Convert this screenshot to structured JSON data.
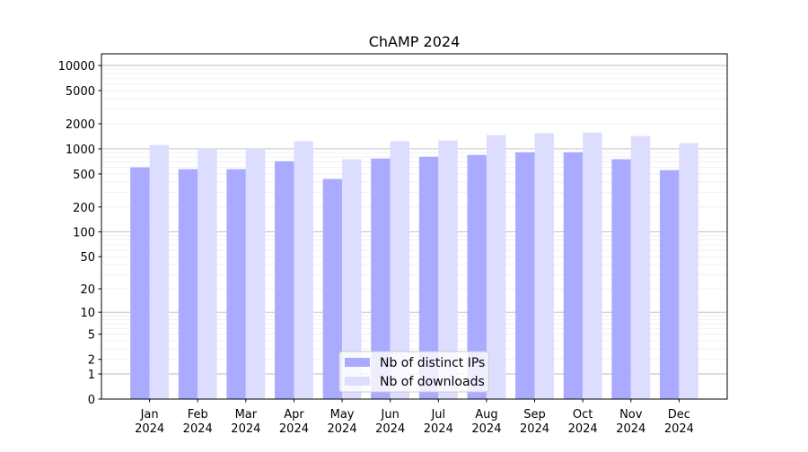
{
  "chart_data": {
    "type": "bar",
    "title": "ChAMP 2024",
    "xlabel": "",
    "ylabel": "",
    "yscale": "log(1+y)",
    "ylim": [
      0,
      13800
    ],
    "grid": true,
    "legend_position": "bottom-center",
    "categories": [
      "Jan\n2024",
      "Feb\n2024",
      "Mar\n2024",
      "Apr\n2024",
      "May\n2024",
      "Jun\n2024",
      "Jul\n2024",
      "Aug\n2024",
      "Sep\n2024",
      "Oct\n2024",
      "Nov\n2024",
      "Dec\n2024"
    ],
    "category_labels": [
      [
        "Jan",
        "2024"
      ],
      [
        "Feb",
        "2024"
      ],
      [
        "Mar",
        "2024"
      ],
      [
        "Apr",
        "2024"
      ],
      [
        "May",
        "2024"
      ],
      [
        "Jun",
        "2024"
      ],
      [
        "Jul",
        "2024"
      ],
      [
        "Aug",
        "2024"
      ],
      [
        "Sep",
        "2024"
      ],
      [
        "Oct",
        "2024"
      ],
      [
        "Nov",
        "2024"
      ],
      [
        "Dec",
        "2024"
      ]
    ],
    "yticks": [
      0,
      1,
      2,
      5,
      10,
      20,
      50,
      100,
      200,
      500,
      1000,
      2000,
      5000,
      10000
    ],
    "ytick_labels": [
      "0",
      "1",
      "2",
      "5",
      "10",
      "20",
      "50",
      "100",
      "200",
      "500",
      "1000",
      "2000",
      "5000",
      "10000"
    ],
    "series": [
      {
        "name": "Nb of distinct IPs",
        "color": "#aaaaff",
        "values": [
          600,
          570,
          570,
          710,
          435,
          765,
          805,
          845,
          910,
          910,
          750,
          555
        ]
      },
      {
        "name": "Nb of downloads",
        "color": "#ddddff",
        "values": [
          1110,
          1000,
          1000,
          1230,
          750,
          1230,
          1260,
          1460,
          1535,
          1570,
          1425,
          1170
        ]
      }
    ]
  }
}
